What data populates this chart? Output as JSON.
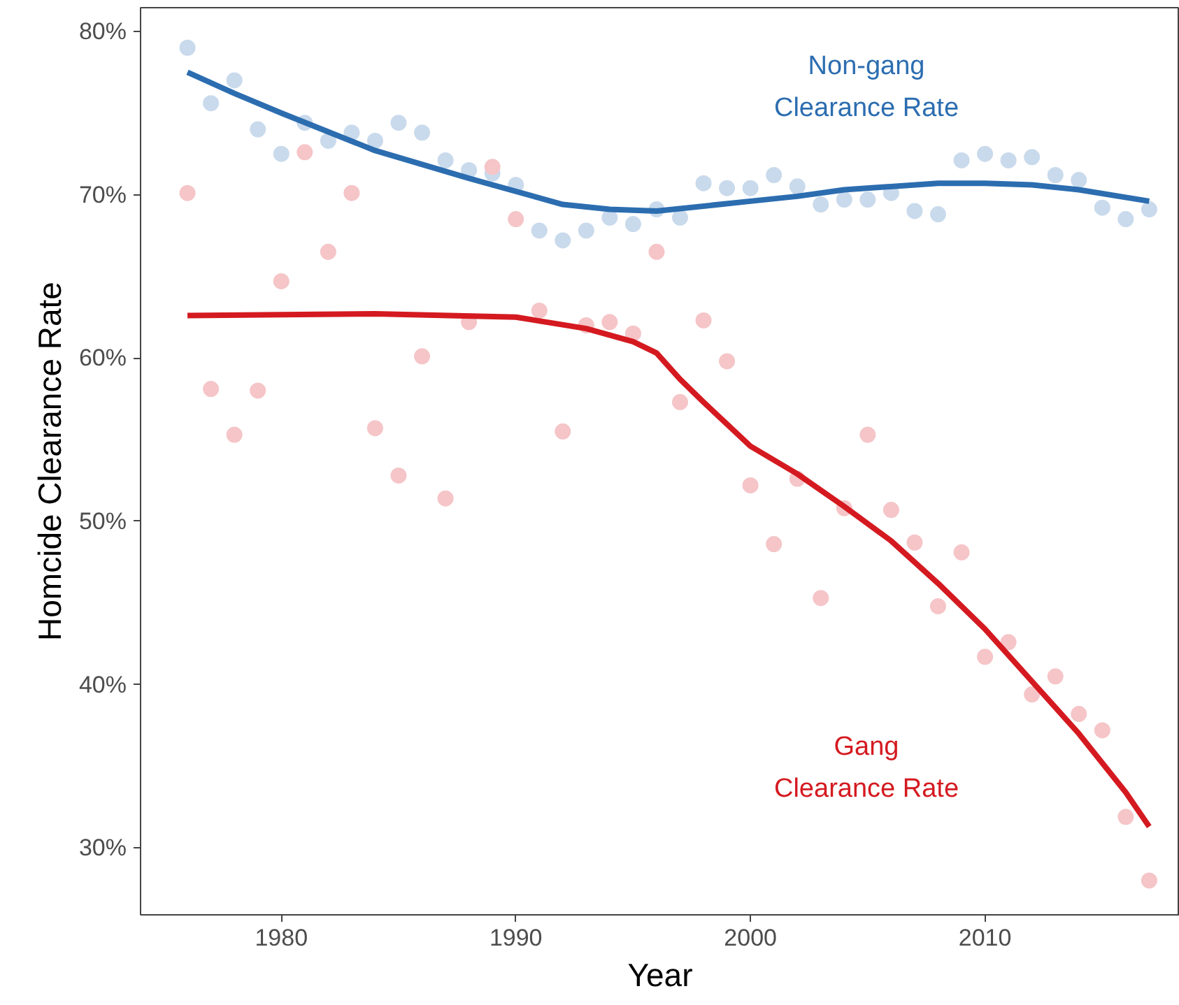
{
  "chart_data": {
    "type": "scatter",
    "xlabel": "Year",
    "ylabel": "Homcide Clearance Rate",
    "x": [
      1976,
      1977,
      1978,
      1979,
      1980,
      1981,
      1982,
      1983,
      1984,
      1985,
      1986,
      1987,
      1988,
      1989,
      1990,
      1991,
      1992,
      1993,
      1994,
      1995,
      1996,
      1997,
      1998,
      1999,
      2000,
      2001,
      2002,
      2003,
      2004,
      2005,
      2006,
      2007,
      2008,
      2009,
      2010,
      2011,
      2012,
      2013,
      2014,
      2015,
      2016,
      2017
    ],
    "series": [
      {
        "marker": "circle",
        "color": "#c9daec",
        "values": [
          79.0,
          75.6,
          77.0,
          74.0,
          72.5,
          74.4,
          73.3,
          73.8,
          73.3,
          74.4,
          73.8,
          72.1,
          71.5,
          71.3,
          70.6,
          67.8,
          67.2,
          67.8,
          68.6,
          68.2,
          69.1,
          68.6,
          70.7,
          70.4,
          70.4,
          71.2,
          70.5,
          69.4,
          69.7,
          69.7,
          70.1,
          69.0,
          68.8,
          72.1,
          72.5,
          72.1,
          72.3,
          71.2,
          70.9,
          69.2,
          68.5,
          69.1
        ]
      },
      {
        "marker": "circle",
        "color": "#f5c5c8",
        "values": [
          70.1,
          58.1,
          55.3,
          58.0,
          64.7,
          72.6,
          66.5,
          70.1,
          55.7,
          52.8,
          60.1,
          51.4,
          62.2,
          71.7,
          68.5,
          62.9,
          55.5,
          62.0,
          62.2,
          61.5,
          66.5,
          57.3,
          62.3,
          59.8,
          52.2,
          48.6,
          52.6,
          45.3,
          50.8,
          55.3,
          50.7,
          48.7,
          44.8,
          48.1,
          41.7,
          42.6,
          39.4,
          40.5,
          38.2,
          37.2,
          31.9,
          28.0
        ]
      },
      {
        "type": "line",
        "marker": "none",
        "color": "#2c6db0",
        "x": [
          1976,
          1978,
          1980,
          1984,
          1988,
          1992,
          1994,
          1996,
          2000,
          2002,
          2004,
          2008,
          2010,
          2012,
          2014,
          2017
        ],
        "values": [
          77.5,
          76.2,
          75.0,
          72.7,
          71.0,
          69.4,
          69.1,
          69.0,
          69.6,
          69.9,
          70.3,
          70.7,
          70.7,
          70.6,
          70.3,
          69.6
        ]
      },
      {
        "type": "line",
        "marker": "none",
        "color": "#d41a20",
        "x": [
          1976,
          1984,
          1990,
          1993,
          1995,
          1996,
          1997,
          1998,
          2000,
          2002,
          2004,
          2006,
          2008,
          2010,
          2012,
          2014,
          2016,
          2017
        ],
        "values": [
          62.6,
          62.7,
          62.5,
          61.8,
          61.0,
          60.3,
          58.7,
          57.3,
          54.6,
          52.9,
          50.9,
          48.8,
          46.2,
          43.4,
          40.2,
          37.0,
          33.4,
          31.3
        ]
      }
    ],
    "annotations": [
      "Non-gang\nClearance Rate",
      "Gang\nClearance Rate"
    ],
    "xlim": [
      1974.0,
      2018.3
    ],
    "ylim": [
      25.9,
      81.45
    ],
    "xticks": [
      1980,
      1990,
      2000,
      2010
    ],
    "yticks": [
      {
        "value": 30,
        "label": "30%"
      },
      {
        "value": 40,
        "label": "40%"
      },
      {
        "value": 50,
        "label": "50%"
      },
      {
        "value": 60,
        "label": "60%"
      },
      {
        "value": 70,
        "label": "70%"
      },
      {
        "value": 80,
        "label": "80%"
      }
    ],
    "grid": false,
    "line_style": "solid"
  }
}
